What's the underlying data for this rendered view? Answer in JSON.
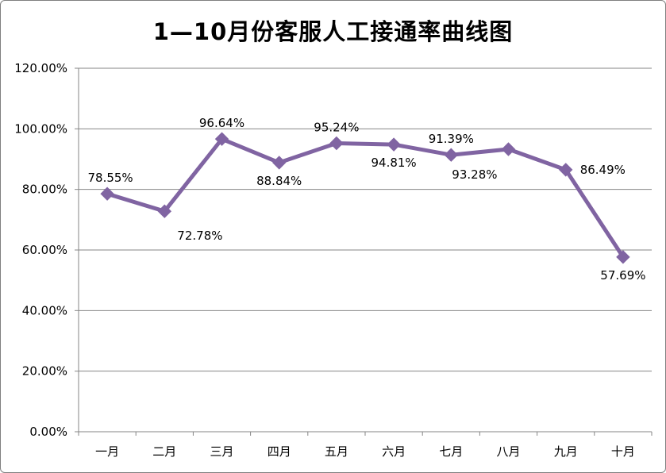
{
  "chart_data": {
    "type": "line",
    "title": "1—10月份客服人工接通率曲线图",
    "categories": [
      "一月",
      "二月",
      "三月",
      "四月",
      "五月",
      "六月",
      "七月",
      "八月",
      "九月",
      "十月"
    ],
    "series": [
      {
        "values": [
          78.55,
          72.78,
          96.64,
          88.84,
          95.24,
          94.81,
          91.39,
          93.28,
          86.49,
          57.69
        ],
        "labels": [
          "78.55%",
          "72.78%",
          "96.64%",
          "88.84%",
          "95.24%",
          "94.81%",
          "91.39%",
          "93.28%",
          "86.49%",
          "57.69%"
        ],
        "color": "#8064a2"
      }
    ],
    "ylim": [
      0,
      120
    ],
    "yticks": [
      "0.00%",
      "20.00%",
      "40.00%",
      "60.00%",
      "80.00%",
      "100.00%",
      "120.00%"
    ],
    "grid": true,
    "xlabel": "",
    "ylabel": "",
    "gridline_color": "#868686"
  }
}
